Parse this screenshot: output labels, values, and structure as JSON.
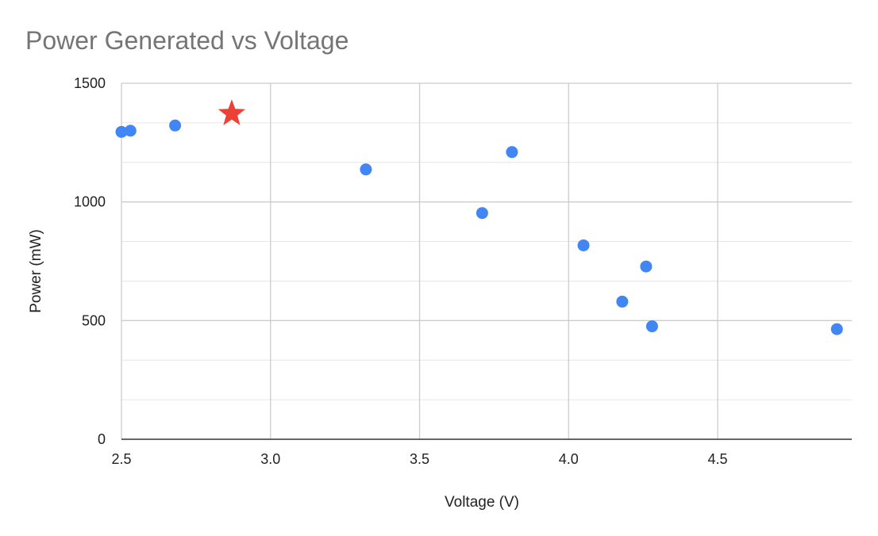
{
  "chart_data": {
    "type": "scatter",
    "title": "Power Generated vs Voltage",
    "xlabel": "Voltage (V)",
    "ylabel": "Power (mW)",
    "xlim": [
      2.5,
      4.95
    ],
    "ylim": [
      0,
      1500
    ],
    "x_ticks": [
      2.5,
      3.0,
      3.5,
      4.0,
      4.5
    ],
    "x_tick_labels": [
      "2.5",
      "3.0",
      "3.5",
      "4.0",
      "4.5"
    ],
    "y_ticks": [
      0,
      500,
      1000,
      1500
    ],
    "y_tick_labels": [
      "0",
      "500",
      "1000",
      "1500"
    ],
    "y_minor_step": 166.67,
    "grid": true,
    "series": [
      {
        "color": "#4285f4",
        "marker": "circle",
        "points": [
          {
            "x": 2.5,
            "y": 1295
          },
          {
            "x": 2.53,
            "y": 1300
          },
          {
            "x": 2.68,
            "y": 1322
          },
          {
            "x": 3.32,
            "y": 1137
          },
          {
            "x": 3.71,
            "y": 953
          },
          {
            "x": 3.81,
            "y": 1210
          },
          {
            "x": 4.05,
            "y": 817
          },
          {
            "x": 4.18,
            "y": 580
          },
          {
            "x": 4.26,
            "y": 728
          },
          {
            "x": 4.28,
            "y": 476
          },
          {
            "x": 4.9,
            "y": 464
          }
        ]
      },
      {
        "color": "#ea4335",
        "marker": "star",
        "points": [
          {
            "x": 2.87,
            "y": 1372
          }
        ]
      }
    ]
  }
}
